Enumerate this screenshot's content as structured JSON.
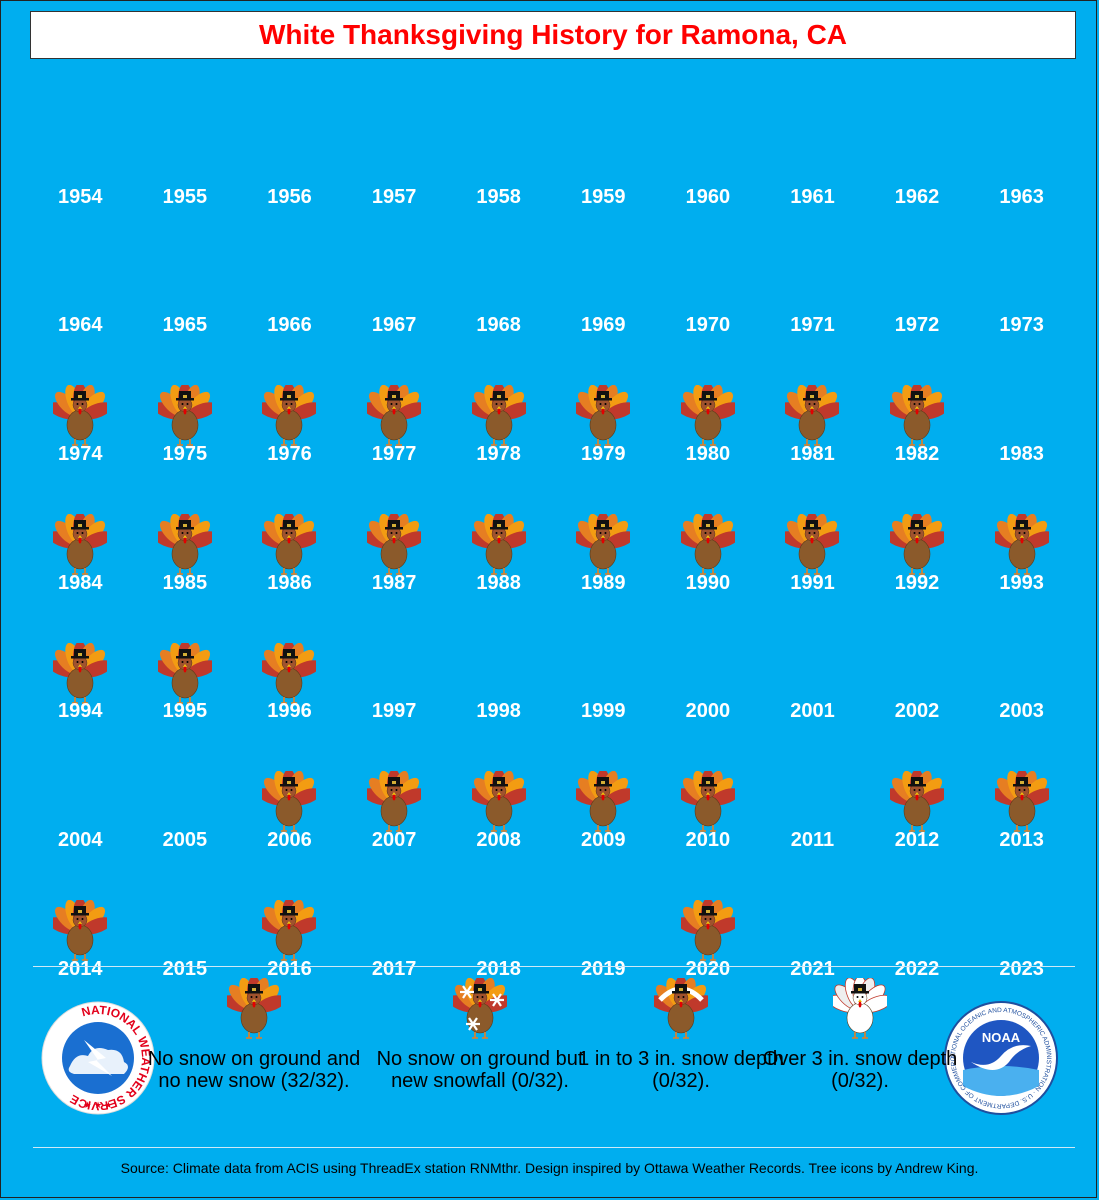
{
  "title": "White Thanksgiving History for Ramona, CA",
  "years": [
    {
      "y": "1954",
      "t": false
    },
    {
      "y": "1955",
      "t": false
    },
    {
      "y": "1956",
      "t": false
    },
    {
      "y": "1957",
      "t": false
    },
    {
      "y": "1958",
      "t": false
    },
    {
      "y": "1959",
      "t": false
    },
    {
      "y": "1960",
      "t": false
    },
    {
      "y": "1961",
      "t": false
    },
    {
      "y": "1962",
      "t": false
    },
    {
      "y": "1963",
      "t": false
    },
    {
      "y": "1964",
      "t": false
    },
    {
      "y": "1965",
      "t": false
    },
    {
      "y": "1966",
      "t": false
    },
    {
      "y": "1967",
      "t": false
    },
    {
      "y": "1968",
      "t": false
    },
    {
      "y": "1969",
      "t": false
    },
    {
      "y": "1970",
      "t": false
    },
    {
      "y": "1971",
      "t": false
    },
    {
      "y": "1972",
      "t": false
    },
    {
      "y": "1973",
      "t": false
    },
    {
      "y": "1974",
      "t": true
    },
    {
      "y": "1975",
      "t": true
    },
    {
      "y": "1976",
      "t": true
    },
    {
      "y": "1977",
      "t": true
    },
    {
      "y": "1978",
      "t": true
    },
    {
      "y": "1979",
      "t": true
    },
    {
      "y": "1980",
      "t": true
    },
    {
      "y": "1981",
      "t": true
    },
    {
      "y": "1982",
      "t": true
    },
    {
      "y": "1983",
      "t": false
    },
    {
      "y": "1984",
      "t": true
    },
    {
      "y": "1985",
      "t": true
    },
    {
      "y": "1986",
      "t": true
    },
    {
      "y": "1987",
      "t": true
    },
    {
      "y": "1988",
      "t": true
    },
    {
      "y": "1989",
      "t": true
    },
    {
      "y": "1990",
      "t": true
    },
    {
      "y": "1991",
      "t": true
    },
    {
      "y": "1992",
      "t": true
    },
    {
      "y": "1993",
      "t": true
    },
    {
      "y": "1994",
      "t": true
    },
    {
      "y": "1995",
      "t": true
    },
    {
      "y": "1996",
      "t": true
    },
    {
      "y": "1997",
      "t": false
    },
    {
      "y": "1998",
      "t": false
    },
    {
      "y": "1999",
      "t": false
    },
    {
      "y": "2000",
      "t": false
    },
    {
      "y": "2001",
      "t": false
    },
    {
      "y": "2002",
      "t": false
    },
    {
      "y": "2003",
      "t": false
    },
    {
      "y": "2004",
      "t": false
    },
    {
      "y": "2005",
      "t": false
    },
    {
      "y": "2006",
      "t": true
    },
    {
      "y": "2007",
      "t": true
    },
    {
      "y": "2008",
      "t": true
    },
    {
      "y": "2009",
      "t": true
    },
    {
      "y": "2010",
      "t": true
    },
    {
      "y": "2011",
      "t": false
    },
    {
      "y": "2012",
      "t": true
    },
    {
      "y": "2013",
      "t": true
    },
    {
      "y": "2014",
      "t": true
    },
    {
      "y": "2015",
      "t": false
    },
    {
      "y": "2016",
      "t": true
    },
    {
      "y": "2017",
      "t": false
    },
    {
      "y": "2018",
      "t": false
    },
    {
      "y": "2019",
      "t": false
    },
    {
      "y": "2020",
      "t": true
    },
    {
      "y": "2021",
      "t": false
    },
    {
      "y": "2022",
      "t": false
    },
    {
      "y": "2023",
      "t": false
    }
  ],
  "legend": {
    "no_snow": "No snow on ground and no new snow (32/32).",
    "new_snow": "No snow on ground but new snowfall (0/32).",
    "depth_1_3": "1 in to 3 in. snow depth (0/32).",
    "depth_over_3": "Over 3 in. snow depth (0/32)."
  },
  "logos": {
    "nws": "NATIONAL WEATHER SERVICE",
    "noaa": "NOAA",
    "noaa_ring": "NATIONAL OCEANIC AND ATMOSPHERIC ADMINISTRATION · U.S. DEPARTMENT OF COMMERCE"
  },
  "source": "Source: Climate data from ACIS using ThreadEx station RNMthr. Design inspired by Ottawa Weather Records. Tree icons by Andrew King.",
  "colors": {
    "background": "#00aeef",
    "title": "#ff0000",
    "turkey_body": "#8b5a2b"
  }
}
